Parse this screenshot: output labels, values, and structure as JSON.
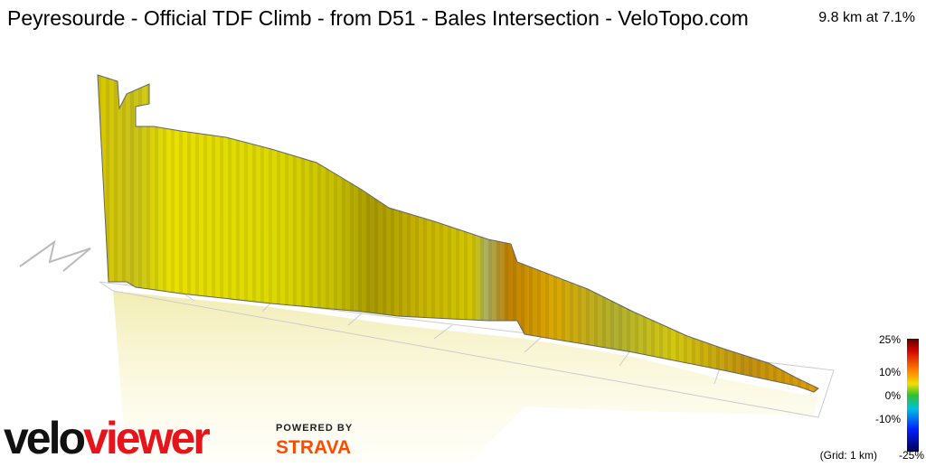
{
  "header": {
    "title": "Peyresourde  - Official TDF Climb - from D51 - Bales Intersection - VeloTopo.com",
    "stats": "9.8 km at 7.1%"
  },
  "legend": {
    "labels": [
      "25%",
      "10%",
      "0%",
      "-10%",
      "-25%"
    ],
    "grid_note": "(Grid: 1 km)"
  },
  "branding": {
    "logo": [
      "velo",
      "viewer"
    ],
    "powered_by": "POWERED BY",
    "strava": "STRAVA"
  }
}
